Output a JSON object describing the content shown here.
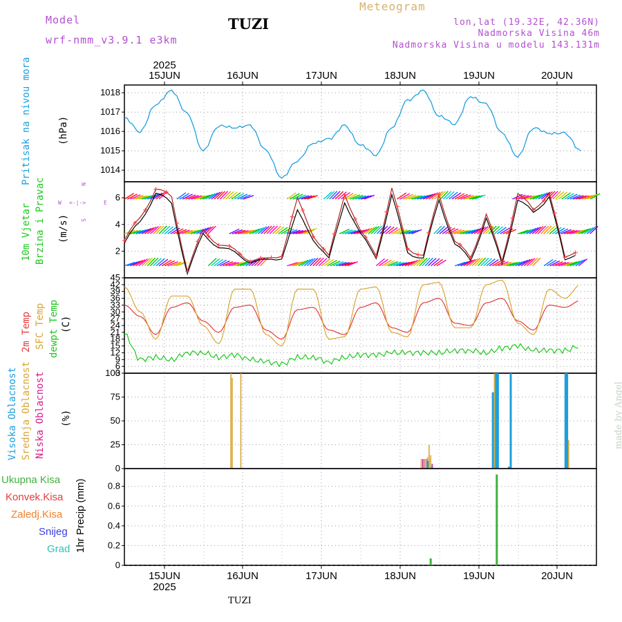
{
  "header": {
    "model_label": "Model",
    "model_name": "wrf-nmm_v3.9.1 e3km",
    "station": "TUZI",
    "meteogram": "Meteogram",
    "lonlat": "lon,lat (19.32E, 42.36N)",
    "elevation": "Nadmorska Visina 46m",
    "model_elevation": "Nadmorska Visina u modelu 143.131m"
  },
  "colors": {
    "pressure": "#1e9fdc",
    "temp2m": "#e23c3c",
    "sfc": "#d9a534",
    "dewpt": "#1ec81e",
    "high_cloud": "#1e9fdc",
    "mid_cloud": "#d9a534",
    "low_cloud": "#d81c8c",
    "total_precip": "#3fb13f",
    "conv_precip": "#e23c3c",
    "frozen": "#f07f2a",
    "snow": "#3c3cdc",
    "hail": "#2ec4b4",
    "model_label": "#b44fd0",
    "meteogram": "#d9b06a",
    "info": "#b44fd0"
  },
  "axes": {
    "top_year": "2025",
    "bottom_year": "2025",
    "days": [
      "15JUN",
      "16JUN",
      "17JUN",
      "18JUN",
      "19JUN",
      "20JUN"
    ],
    "footer": "TUZI",
    "made_by": "made by Angel"
  },
  "panels": {
    "pressure": {
      "label": "Pritisak na nivou mora",
      "unit": "(hPa)"
    },
    "wind": {
      "label1": "10m Vjetar",
      "label2": "Brzina i Pravac",
      "unit": "(m/s)",
      "legend_n": "N",
      "legend_w": "W",
      "legend_e": "E",
      "legend_s": "S",
      "legend_arrows": "<-|->"
    },
    "temp": {
      "label1": "2m Temp",
      "label2": "SFC Temp",
      "label3": "dewpt Temp",
      "unit": "(C)"
    },
    "cloud": {
      "label1": "Visoka Oblacnost",
      "label2": "Srednja Oblacnost",
      "label3": "Niska Oblacnost",
      "unit": "(%)"
    },
    "precip": {
      "unit": "1hr Precip (mm)",
      "legend": [
        "Ukupna Kisa",
        "Konvek.Kisa",
        "Zaledj.Kisa",
        "Snijeg",
        "Grad"
      ]
    }
  },
  "chart_data": [
    {
      "type": "line",
      "title": "Pritisak na nivou mora",
      "ylabel": "(hPa)",
      "x": [
        0,
        6,
        12,
        18,
        24,
        30,
        36,
        42,
        48,
        54,
        60,
        66,
        72,
        78,
        84,
        90,
        96,
        102,
        108,
        114,
        120,
        126,
        132,
        138,
        144,
        150,
        156,
        162,
        168,
        174
      ],
      "yticks": [
        1014,
        1015,
        1016,
        1017,
        1018
      ],
      "ylim": [
        1013.4,
        1018.4
      ],
      "series": [
        {
          "name": "pressure",
          "values": [
            1016.7,
            1016.0,
            1017.4,
            1018.1,
            1016.9,
            1015.0,
            1016.3,
            1016.2,
            1016.3,
            1015.0,
            1013.6,
            1014.5,
            1015.4,
            1015.6,
            1016.3,
            1015.3,
            1014.8,
            1016.2,
            1017.6,
            1018.1,
            1016.8,
            1016.4,
            1017.8,
            1017.4,
            1015.9,
            1014.7,
            1016.2,
            1015.9,
            1015.9,
            1015.0
          ]
        }
      ]
    },
    {
      "type": "line",
      "title": "10m Vjetar Brzina i Pravac",
      "ylabel": "(m/s)",
      "yticks": [
        2,
        4,
        6
      ],
      "ylim": [
        0,
        7.2
      ],
      "x": [
        0,
        6,
        12,
        18,
        24,
        30,
        36,
        42,
        48,
        54,
        60,
        66,
        72,
        78,
        84,
        90,
        96,
        102,
        108,
        114,
        120,
        126,
        132,
        138,
        144,
        150,
        156,
        162,
        168,
        174
      ],
      "series": [
        {
          "name": "wind speed",
          "values": [
            2.6,
            4.2,
            6.4,
            5.5,
            0.4,
            3.2,
            2.4,
            1.8,
            1.3,
            1.2,
            1.6,
            4.9,
            3.0,
            1.3,
            5.8,
            3.2,
            1.6,
            6.1,
            2.0,
            1.4,
            5.9,
            2.5,
            1.3,
            4.5,
            1.0,
            5.9,
            4.8,
            6.2,
            1.2,
            2.2
          ]
        },
        {
          "name": "gust",
          "values": [
            2.8,
            4.5,
            6.7,
            6.0,
            0.6,
            3.5,
            2.6,
            2.0,
            1.4,
            1.3,
            1.8,
            5.8,
            3.3,
            1.5,
            6.4,
            3.4,
            1.8,
            6.6,
            2.3,
            1.6,
            6.3,
            2.7,
            1.5,
            4.8,
            1.2,
            6.4,
            5.0,
            6.5,
            1.4,
            2.4
          ]
        }
      ]
    },
    {
      "type": "line",
      "title": "Temperature",
      "ylabel": "(C)",
      "yticks": [
        3,
        6,
        9,
        12,
        15,
        18,
        21,
        24,
        27,
        30,
        33,
        36,
        39,
        42,
        45
      ],
      "ylim": [
        3,
        45
      ],
      "x": [
        0,
        6,
        12,
        18,
        24,
        30,
        36,
        42,
        48,
        54,
        60,
        66,
        72,
        78,
        84,
        90,
        96,
        102,
        108,
        114,
        120,
        126,
        132,
        138,
        144,
        150,
        156,
        162,
        168,
        174
      ],
      "series": [
        {
          "name": "2m Temp",
          "values": [
            33,
            28,
            20,
            32,
            34,
            26,
            21,
            32,
            33,
            22,
            18,
            31,
            32,
            22,
            20,
            32,
            34,
            23,
            21,
            34,
            36,
            25,
            24,
            34,
            36,
            26,
            22,
            33,
            32,
            35
          ]
        },
        {
          "name": "SFC Temp",
          "values": [
            41,
            30,
            18,
            37,
            37,
            24,
            16,
            40,
            40,
            20,
            15,
            40,
            40,
            18,
            19,
            40,
            41,
            21,
            19,
            42,
            43,
            23,
            23,
            42,
            44,
            25,
            20,
            40,
            36,
            42
          ]
        },
        {
          "name": "dewpt Temp",
          "values": [
            20,
            9,
            10,
            9,
            12,
            12,
            10,
            11,
            9,
            8,
            7,
            10,
            10,
            8,
            10,
            11,
            11,
            12,
            12,
            12,
            12,
            13,
            13,
            12,
            14,
            15,
            13,
            13,
            13,
            15
          ]
        }
      ]
    },
    {
      "type": "bar",
      "title": "Oblacnost",
      "ylabel": "(%)",
      "yticks": [
        0,
        25,
        50,
        75,
        100
      ],
      "ylim": [
        0,
        100
      ],
      "x_hours": [
        40.6,
        41.1,
        44.4,
        113.2,
        114.1,
        114.8,
        115.6,
        116.2,
        116.8,
        117.3,
        117.9,
        140.4,
        141.1,
        141.7,
        142.3,
        143.0,
        143.6,
        145.6,
        147.2,
        147.9,
        148.5,
        168.1,
        168.8,
        169.4
      ],
      "series": [
        {
          "name": "Visoka Oblacnost",
          "values": [
            0,
            0,
            0,
            0,
            0,
            0,
            0,
            8,
            0,
            0,
            2,
            0,
            80,
            0,
            100,
            100,
            0,
            0,
            2,
            100,
            0,
            0,
            100,
            100
          ]
        },
        {
          "name": "Srednja Oblacnost",
          "values": [
            100,
            95,
            100,
            10,
            10,
            10,
            12,
            25,
            14,
            2,
            0,
            10,
            100,
            0,
            0,
            0,
            0,
            0,
            0,
            0,
            0,
            0,
            0,
            30
          ]
        },
        {
          "name": "Niska Oblacnost",
          "values": [
            0,
            0,
            0,
            10,
            10,
            10,
            10,
            0,
            5,
            0,
            0,
            0,
            98,
            84,
            0,
            0,
            0,
            0,
            0,
            0,
            0,
            0,
            0,
            0
          ]
        }
      ]
    },
    {
      "type": "bar",
      "title": "1hr Precip",
      "ylabel": "1hr Precip (mm)",
      "yticks": [
        0,
        0.2,
        0.4,
        0.6,
        0.8
      ],
      "ylim": [
        0,
        0.98
      ],
      "x_hours": [
        116.8,
        142.0
      ],
      "series": [
        {
          "name": "Ukupna Kisa",
          "values": [
            0.07,
            0.92
          ]
        },
        {
          "name": "Konvek.Kisa",
          "values": [
            0.0,
            0.0
          ]
        },
        {
          "name": "Zaledj.Kisa",
          "values": [
            0.0,
            0.0
          ]
        },
        {
          "name": "Snijeg",
          "values": [
            0.0,
            0.0
          ]
        },
        {
          "name": "Grad",
          "values": [
            0.0,
            0.0
          ]
        }
      ]
    }
  ]
}
